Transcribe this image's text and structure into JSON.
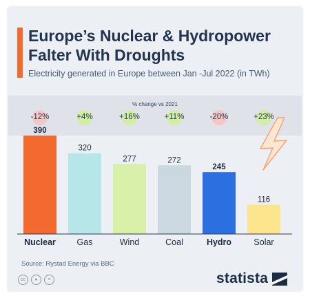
{
  "header": {
    "title": "Europe’s Nuclear & Hydropower Falter With Droughts",
    "subtitle": "Electricity generated in Europe between Jan -Jul 2022 (in TWh)"
  },
  "change": {
    "caption": "% change vs 2021",
    "items": [
      {
        "label": "-12%",
        "direction": "down"
      },
      {
        "label": "+4%",
        "direction": "up"
      },
      {
        "label": "+16%",
        "direction": "up"
      },
      {
        "label": "+11%",
        "direction": "up"
      },
      {
        "label": "-20%",
        "direction": "down"
      },
      {
        "label": "+23%",
        "direction": "up"
      }
    ]
  },
  "chart_data": {
    "type": "bar",
    "categories": [
      "Nuclear",
      "Gas",
      "Wind",
      "Coal",
      "Hydro",
      "Solar"
    ],
    "values": [
      390,
      320,
      277,
      272,
      245,
      116
    ],
    "value_labels": [
      "390",
      "320",
      "277",
      "272",
      "245",
      "116"
    ],
    "highlighted": [
      "Nuclear",
      "Hydro"
    ],
    "colors": [
      "#f26a2e",
      "#b7e6e8",
      "#d9f0a8",
      "#cbd8e0",
      "#2c6fe0",
      "#fde58e"
    ],
    "ylim": [
      0,
      390
    ],
    "grid": false
  },
  "footer": {
    "source": "Source: Rystad Energy via BBC",
    "brand": "statista",
    "license_icons": [
      "cc-icon",
      "attribution-icon",
      "no-derivatives-icon"
    ]
  },
  "colors": {
    "accent": "#f26a2e",
    "bubble_down": "#f5c6c6",
    "bubble_up": "#d3eda4"
  }
}
